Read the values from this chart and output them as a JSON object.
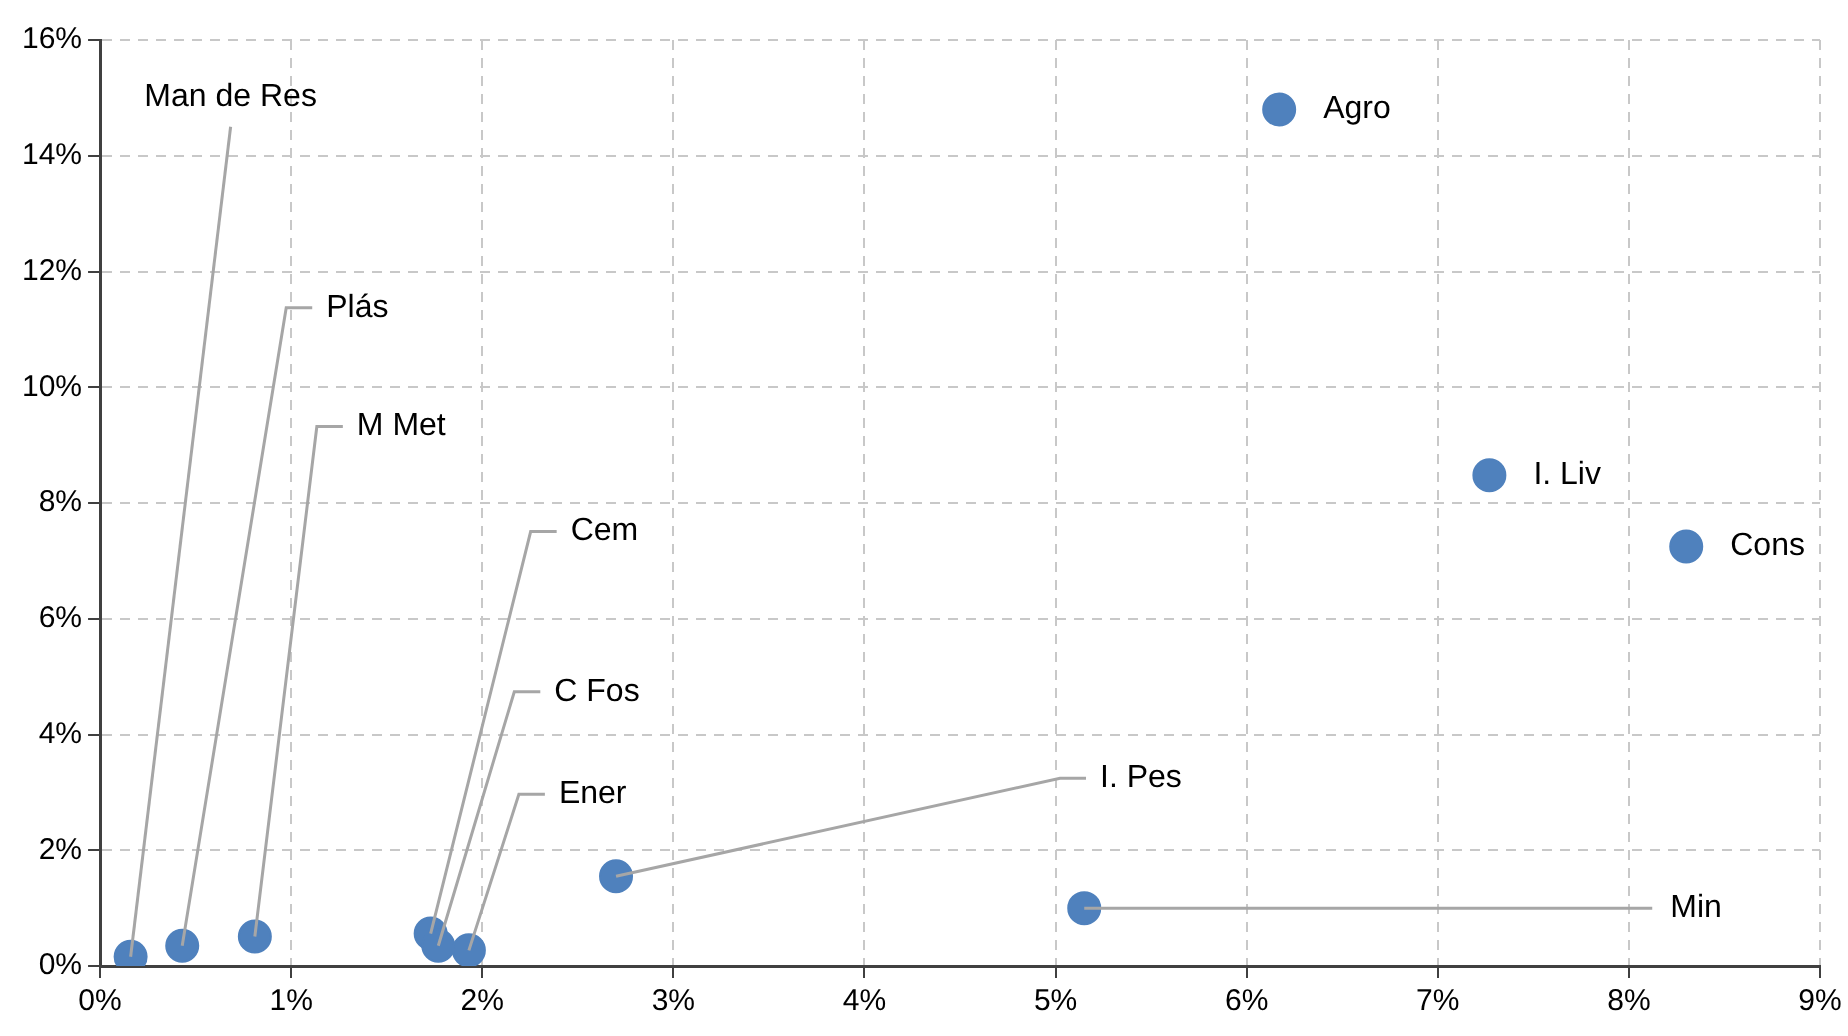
{
  "chart_data": {
    "type": "scatter",
    "series": [
      {
        "color": "#4f81bd",
        "x": [
          0.16,
          0.43,
          0.81,
          1.73,
          1.77,
          1.93,
          2.7,
          5.15,
          6.17,
          7.27,
          8.3
        ],
        "values": [
          0.16,
          0.35,
          0.51,
          0.56,
          0.35,
          0.27,
          1.55,
          1.0,
          14.8,
          8.48,
          7.25
        ]
      }
    ],
    "annotations": [
      {
        "text": "Man de Res",
        "x": 0.16,
        "y": 0.16
      },
      {
        "text": "Plás",
        "x": 0.43,
        "y": 0.35
      },
      {
        "text": "M Met",
        "x": 0.81,
        "y": 0.51
      },
      {
        "text": "Cem",
        "x": 1.73,
        "y": 0.56
      },
      {
        "text": "C Fos",
        "x": 1.77,
        "y": 0.35
      },
      {
        "text": "Ener",
        "x": 1.93,
        "y": 0.27
      },
      {
        "text": "I. Pes",
        "x": 2.7,
        "y": 1.55
      },
      {
        "text": "Min",
        "x": 5.15,
        "y": 1.0
      },
      {
        "text": "Agro",
        "x": 6.17,
        "y": 14.8
      },
      {
        "text": "I. Liv",
        "x": 7.27,
        "y": 8.48
      },
      {
        "text": "Cons",
        "x": 8.3,
        "y": 7.25
      }
    ],
    "xlim": [
      0,
      9
    ],
    "ylim": [
      0,
      16
    ],
    "xticks": [
      {
        "value": 0,
        "label": "0%"
      },
      {
        "value": 1,
        "label": "1%"
      },
      {
        "value": 2,
        "label": "2%"
      },
      {
        "value": 3,
        "label": "3%"
      },
      {
        "value": 4,
        "label": "4%"
      },
      {
        "value": 5,
        "label": "5%"
      },
      {
        "value": 6,
        "label": "6%"
      },
      {
        "value": 7,
        "label": "7%"
      },
      {
        "value": 8,
        "label": "8%"
      },
      {
        "value": 9,
        "label": "9%"
      }
    ],
    "yticks": [
      {
        "value": 0,
        "label": "0%"
      },
      {
        "value": 2,
        "label": "2%"
      },
      {
        "value": 4,
        "label": "4%"
      },
      {
        "value": 6,
        "label": "6%"
      },
      {
        "value": 8,
        "label": "8%"
      },
      {
        "value": 10,
        "label": "10%"
      },
      {
        "value": 12,
        "label": "12%"
      },
      {
        "value": 14,
        "label": "14%"
      },
      {
        "value": 16,
        "label": "16%"
      }
    ],
    "grid": true,
    "marker": "circle",
    "legend": false
  }
}
